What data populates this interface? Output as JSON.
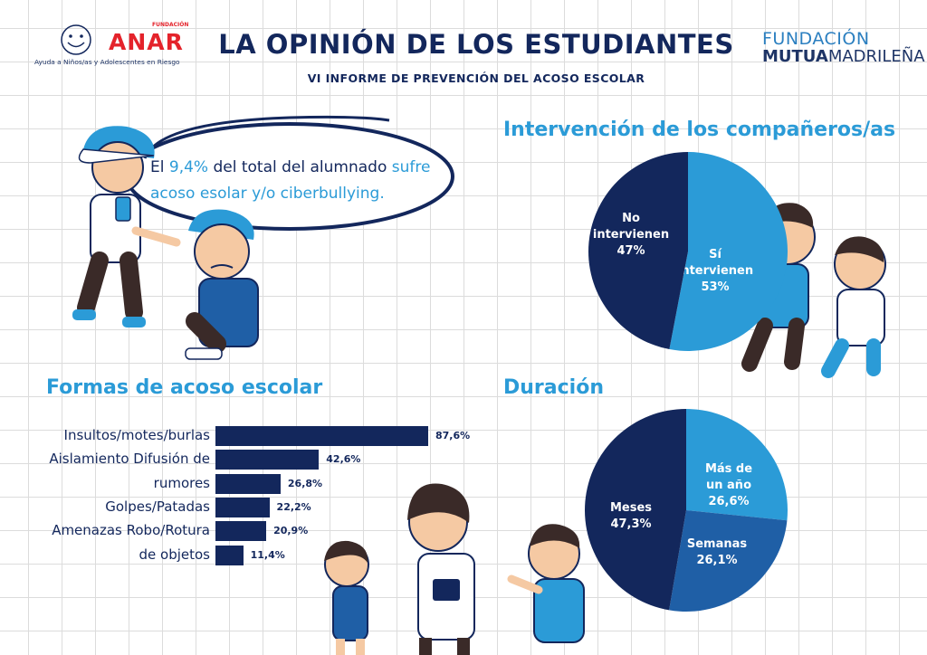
{
  "header": {
    "title": "LA OPINIÓN DE LOS ESTUDIANTES",
    "subtitle": "VI INFORME DE PREVENCIÓN DEL ACOSO ESCOLAR",
    "anar_logo": {
      "foundation": "FUNDACIÓN",
      "brand": "ANAR",
      "tagline": "Ayuda a Niños/as y Adolescentes en Riesgo"
    },
    "mutua_logo": {
      "line1": "FUNDACIÓN",
      "line2_bold": "MUTUA",
      "line2_rest": "MADRILEÑA"
    }
  },
  "speech": {
    "part1": "El ",
    "highlight1": "9,4%",
    "part2": " del total del alumnado ",
    "highlight2": "sufre",
    "line2": "acoso esolar y/o ciberbullying."
  },
  "colors": {
    "navy": "#13275c",
    "accent": "#2b9bd7",
    "mid_blue": "#1f5fa6"
  },
  "chart_data": [
    {
      "type": "pie",
      "title": "Intervención de los compañeros/as",
      "slices": [
        {
          "label_line1": "Sí",
          "label_line2": "intervienen",
          "value_text": "53%",
          "value": 53,
          "color": "#2b9bd7"
        },
        {
          "label_line1": "No",
          "label_line2": "intervienen",
          "value_text": "47%",
          "value": 47,
          "color": "#13275c"
        }
      ]
    },
    {
      "type": "bar",
      "orientation": "horizontal",
      "title": "Formas de acoso escolar",
      "labels": [
        "Insultos/motes/burlas",
        "Aislamiento Difusión de",
        "rumores",
        "Golpes/Patadas",
        "Amenazas Robo/Rotura",
        "de objetos"
      ],
      "value_texts": [
        "87,6%",
        "42,6%",
        "26,8%",
        "22,2%",
        "20,9%",
        "11,4%"
      ],
      "values": [
        87.6,
        42.6,
        26.8,
        22.2,
        20.9,
        11.4
      ],
      "xlim": [
        0,
        100
      ]
    },
    {
      "type": "pie",
      "title": "Duración",
      "slices": [
        {
          "label_line1": "Más de",
          "label_line2": "un año",
          "value_text": "26,6%",
          "value": 26.6,
          "color": "#2b9bd7"
        },
        {
          "label_line1": "Semanas",
          "label_line2": "",
          "value_text": "26,1%",
          "value": 26.1,
          "color": "#1f5fa6"
        },
        {
          "label_line1": "Meses",
          "label_line2": "",
          "value_text": "47,3%",
          "value": 47.3,
          "color": "#13275c"
        }
      ]
    }
  ]
}
